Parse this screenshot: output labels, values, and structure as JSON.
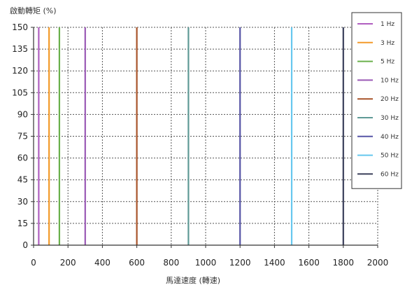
{
  "chart_data": {
    "type": "line",
    "title": "",
    "ylabel": "啟動轉矩 (%)",
    "xlabel": "馬達速度 (轉速)",
    "xlim": [
      0,
      2000
    ],
    "ylim": [
      0,
      150
    ],
    "x_ticks": [
      0,
      200,
      400,
      600,
      800,
      1000,
      1200,
      1400,
      1600,
      1800,
      2000
    ],
    "y_ticks": [
      0,
      15,
      30,
      45,
      60,
      75,
      90,
      105,
      120,
      135,
      150
    ],
    "grid": true,
    "legend_position": "right",
    "series": [
      {
        "name": "1 Hz",
        "color": "#b05fc0",
        "x": [
          30,
          30
        ],
        "y": [
          0,
          150
        ]
      },
      {
        "name": "3 Hz",
        "color": "#f39a2a",
        "x": [
          90,
          90
        ],
        "y": [
          0,
          150
        ]
      },
      {
        "name": "5 Hz",
        "color": "#6ab04c",
        "x": [
          150,
          150
        ],
        "y": [
          0,
          150
        ]
      },
      {
        "name": "10 Hz",
        "color": "#9a59b5",
        "x": [
          300,
          300
        ],
        "y": [
          0,
          150
        ]
      },
      {
        "name": "20 Hz",
        "color": "#a9542a",
        "x": [
          600,
          600
        ],
        "y": [
          0,
          150
        ]
      },
      {
        "name": "30 Hz",
        "color": "#5f9a96",
        "x": [
          900,
          900
        ],
        "y": [
          0,
          150
        ]
      },
      {
        "name": "40 Hz",
        "color": "#5755a6",
        "x": [
          1200,
          1200
        ],
        "y": [
          0,
          150
        ]
      },
      {
        "name": "50 Hz",
        "color": "#66c7ee",
        "x": [
          1500,
          1500
        ],
        "y": [
          0,
          150
        ]
      },
      {
        "name": "60 Hz",
        "color": "#3a3f5a",
        "x": [
          1800,
          1800
        ],
        "y": [
          0,
          150
        ]
      }
    ]
  }
}
